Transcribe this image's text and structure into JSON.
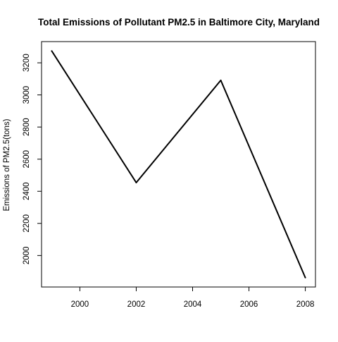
{
  "chart_data": {
    "type": "line",
    "title": "Total Emissions of Pollutant PM2.5 in Baltimore City, Maryland",
    "xlabel": "",
    "ylabel": "Emissions of PM2.5(tons)",
    "x": [
      1999,
      2002,
      2005,
      2008
    ],
    "series": [
      {
        "values": [
          3274,
          2454,
          3091,
          1862
        ]
      }
    ],
    "xlim": [
      1998.64,
      2008.36
    ],
    "ylim": [
      1804,
      3332
    ],
    "xticks": [
      2000,
      2002,
      2004,
      2006,
      2008
    ],
    "yticks": [
      2000,
      2200,
      2400,
      2600,
      2800,
      3000,
      3200
    ],
    "xtick_labels": [
      "2000",
      "2002",
      "2004",
      "2006",
      "2008"
    ],
    "ytick_labels": [
      "2000",
      "2200",
      "2400",
      "2600",
      "2800",
      "3000",
      "3200"
    ],
    "grid": false,
    "line_color": "#000000"
  }
}
